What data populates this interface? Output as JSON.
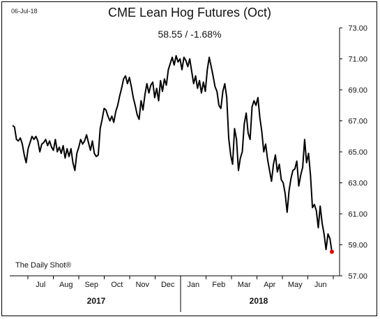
{
  "date_stamp": "06-Jul-18",
  "source_label": "The Daily Shot®",
  "chart_data": {
    "type": "line",
    "title": "CME Lean Hog Futures (Oct)",
    "subtitle": "58.55  /  -1.68%",
    "ylim": [
      57.0,
      73.0
    ],
    "y_ticks": [
      "73.00",
      "71.00",
      "69.00",
      "67.00",
      "65.00",
      "63.00",
      "61.00",
      "59.00",
      "57.00"
    ],
    "y_tick_values": [
      73,
      71,
      69,
      67,
      65,
      63,
      61,
      59,
      57
    ],
    "x_month_labels": [
      "Jul",
      "Aug",
      "Sep",
      "Oct",
      "Nov",
      "Dec",
      "Jan",
      "Feb",
      "Mar",
      "Apr",
      "May",
      "Jun"
    ],
    "x_year_labels": [
      "2017",
      "2018"
    ],
    "grid": false,
    "last_point_color": "#e00000",
    "series": [
      {
        "values": [
          66.7,
          66.6,
          65.8,
          65.7,
          65.9,
          65.5,
          64.8,
          64.3,
          65.2,
          65.6,
          66.0,
          65.8,
          66.0,
          65.7,
          65.0,
          65.5,
          65.6,
          65.8,
          65.4,
          65.7,
          65.3,
          65.1,
          65.8,
          65.0,
          65.3,
          64.9,
          65.4,
          64.6,
          65.2,
          64.7,
          65.2,
          64.3,
          63.8,
          64.9,
          65.3,
          65.8,
          65.5,
          65.7,
          66.1,
          65.6,
          65.1,
          65.7,
          64.9,
          64.7,
          64.8,
          66.5,
          67.1,
          67.8,
          67.7,
          67.3,
          67.0,
          67.3,
          66.9,
          67.6,
          68.0,
          68.6,
          69.1,
          69.7,
          69.9,
          69.4,
          69.8,
          69.2,
          68.5,
          68.0,
          67.4,
          67.1,
          68.3,
          67.7,
          68.7,
          69.4,
          68.8,
          69.3,
          69.5,
          68.5,
          69.1,
          68.3,
          69.6,
          68.9,
          69.7,
          69.3,
          70.3,
          70.7,
          71.1,
          70.6,
          71.2,
          70.8,
          71.0,
          70.3,
          71.1,
          70.9,
          70.5,
          71.0,
          70.2,
          69.4,
          69.9,
          69.1,
          69.6,
          68.8,
          69.5,
          68.9,
          70.3,
          71.1,
          70.5,
          69.9,
          69.2,
          68.9,
          68.0,
          67.8,
          68.9,
          69.4,
          68.5,
          65.9,
          64.8,
          64.2,
          66.5,
          65.8,
          63.8,
          64.6,
          65.0,
          66.8,
          67.5,
          66.2,
          65.8,
          67.9,
          68.3,
          68.0,
          68.5,
          67.2,
          66.3,
          65.0,
          65.5,
          64.5,
          63.8,
          63.1,
          64.2,
          64.8,
          63.7,
          64.2,
          63.2,
          63.0,
          62.3,
          61.1,
          62.5,
          63.3,
          63.8,
          63.9,
          64.4,
          62.8,
          63.5,
          64.0,
          65.8,
          64.3,
          64.9,
          63.5,
          61.4,
          61.6,
          61.2,
          60.1,
          61.5,
          60.4,
          59.7,
          58.7,
          59.7,
          59.4,
          58.55
        ]
      }
    ]
  }
}
